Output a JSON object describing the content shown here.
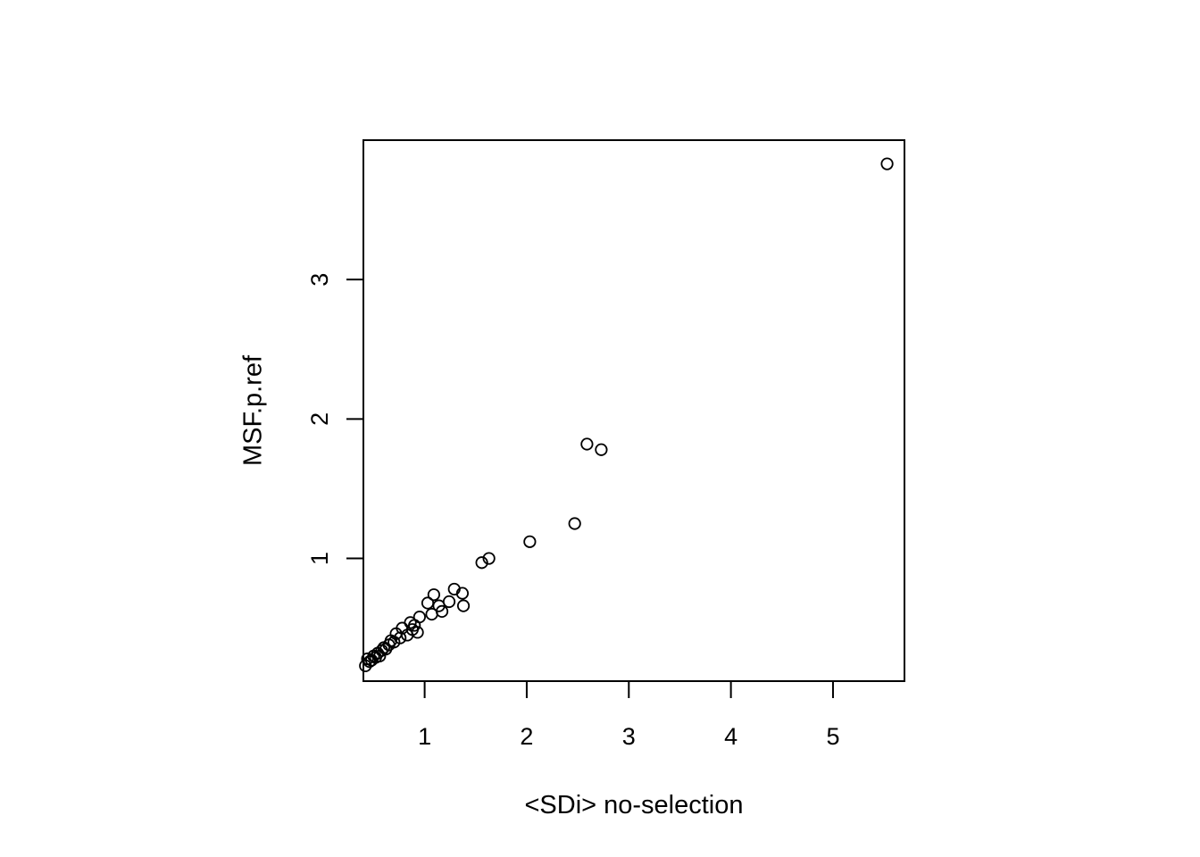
{
  "chart_data": {
    "type": "scatter",
    "title": "",
    "xlabel": "<SDi> no-selection",
    "ylabel": "MSF.p.ref",
    "xlim": [
      0.4,
      5.7
    ],
    "ylim": [
      0.12,
      4.0
    ],
    "x_ticks": [
      1,
      2,
      3,
      4,
      5
    ],
    "y_ticks": [
      1,
      2,
      3
    ],
    "grid": false,
    "legend": "none",
    "marker": "open-circle",
    "points": [
      {
        "x": 0.42,
        "y": 0.23
      },
      {
        "x": 0.44,
        "y": 0.28
      },
      {
        "x": 0.46,
        "y": 0.26
      },
      {
        "x": 0.48,
        "y": 0.27
      },
      {
        "x": 0.5,
        "y": 0.3
      },
      {
        "x": 0.52,
        "y": 0.29
      },
      {
        "x": 0.54,
        "y": 0.32
      },
      {
        "x": 0.56,
        "y": 0.3
      },
      {
        "x": 0.58,
        "y": 0.34
      },
      {
        "x": 0.6,
        "y": 0.36
      },
      {
        "x": 0.62,
        "y": 0.35
      },
      {
        "x": 0.65,
        "y": 0.38
      },
      {
        "x": 0.67,
        "y": 0.41
      },
      {
        "x": 0.7,
        "y": 0.4
      },
      {
        "x": 0.72,
        "y": 0.46
      },
      {
        "x": 0.76,
        "y": 0.43
      },
      {
        "x": 0.78,
        "y": 0.5
      },
      {
        "x": 0.83,
        "y": 0.45
      },
      {
        "x": 0.86,
        "y": 0.54
      },
      {
        "x": 0.88,
        "y": 0.49
      },
      {
        "x": 0.9,
        "y": 0.52
      },
      {
        "x": 0.93,
        "y": 0.47
      },
      {
        "x": 0.95,
        "y": 0.58
      },
      {
        "x": 1.03,
        "y": 0.68
      },
      {
        "x": 1.07,
        "y": 0.6
      },
      {
        "x": 1.09,
        "y": 0.74
      },
      {
        "x": 1.14,
        "y": 0.66
      },
      {
        "x": 1.17,
        "y": 0.62
      },
      {
        "x": 1.24,
        "y": 0.69
      },
      {
        "x": 1.29,
        "y": 0.78
      },
      {
        "x": 1.37,
        "y": 0.75
      },
      {
        "x": 1.38,
        "y": 0.66
      },
      {
        "x": 1.56,
        "y": 0.97
      },
      {
        "x": 1.63,
        "y": 1.0
      },
      {
        "x": 2.03,
        "y": 1.12
      },
      {
        "x": 2.47,
        "y": 1.25
      },
      {
        "x": 2.59,
        "y": 1.82
      },
      {
        "x": 2.73,
        "y": 1.78
      },
      {
        "x": 5.53,
        "y": 3.83
      }
    ]
  }
}
